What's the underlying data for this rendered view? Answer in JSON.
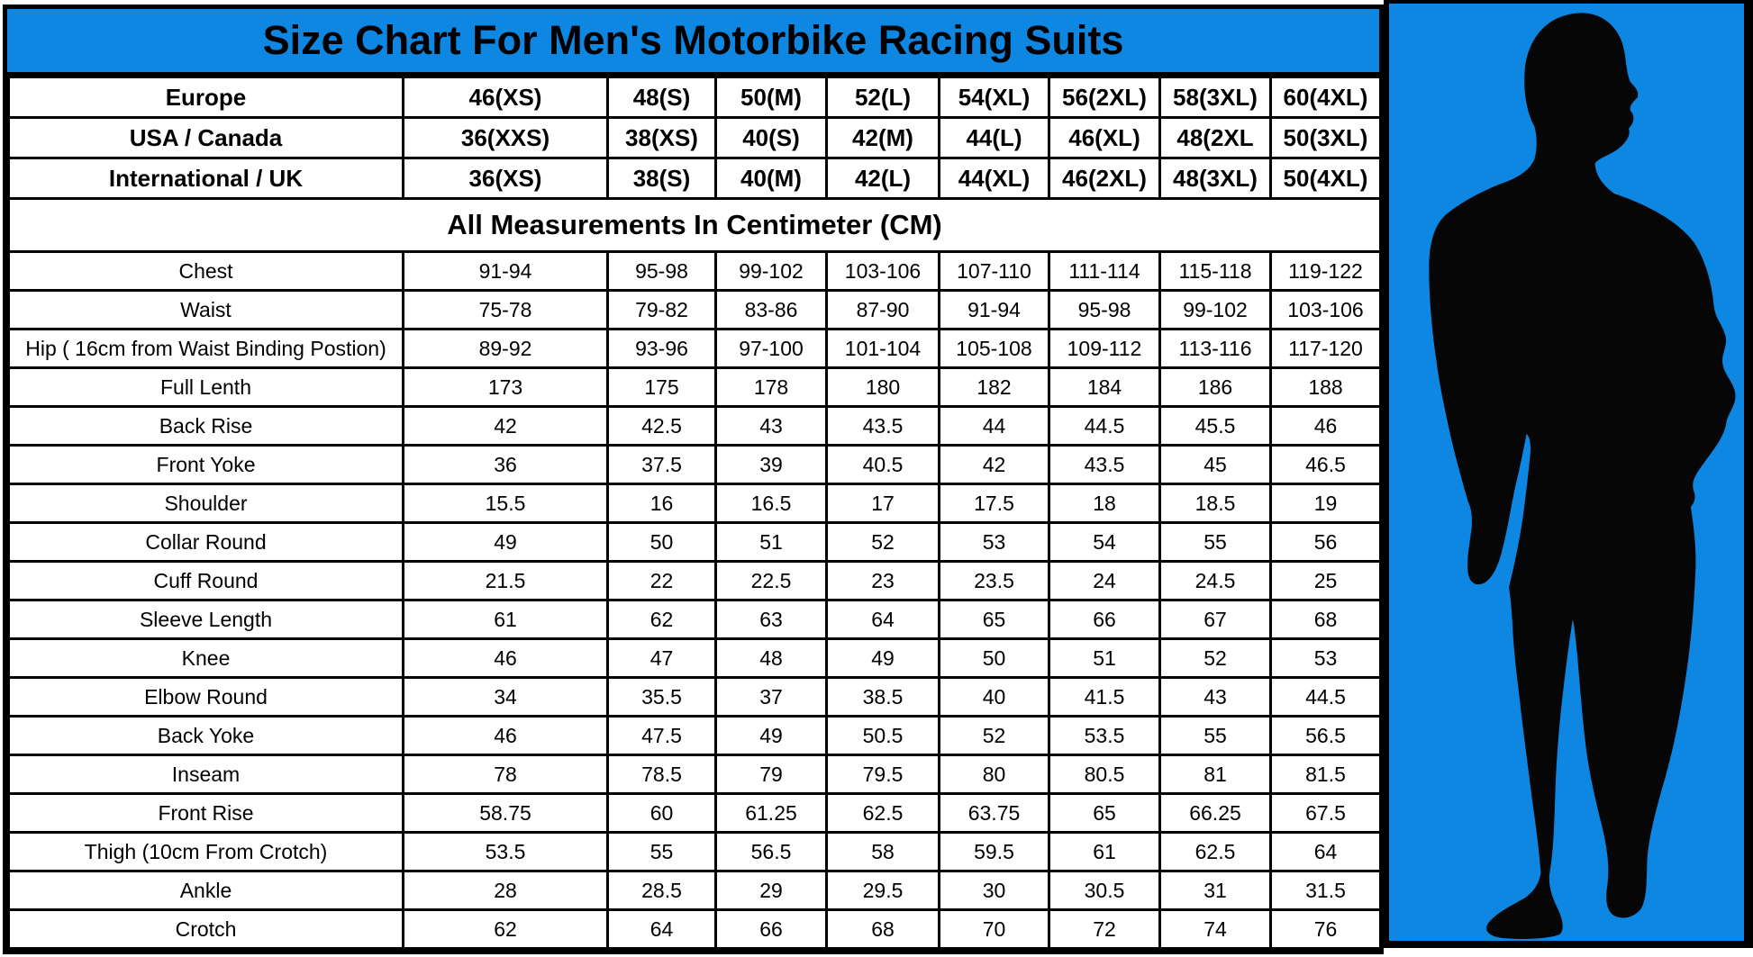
{
  "chart_data": {
    "type": "table",
    "title": "Size Chart For Men's Motorbike Racing Suits",
    "units_banner": "All Measurements In Centimeter (CM)",
    "size_system_rows": [
      {
        "label": "Europe",
        "values": [
          "46(XS)",
          "48(S)",
          "50(M)",
          "52(L)",
          "54(XL)",
          "56(2XL)",
          "58(3XL)",
          "60(4XL)"
        ]
      },
      {
        "label": "USA / Canada",
        "values": [
          "36(XXS)",
          "38(XS)",
          "40(S)",
          "42(M)",
          "44(L)",
          "46(XL)",
          "48(2XL",
          "50(3XL)"
        ]
      },
      {
        "label": "International / UK",
        "values": [
          "36(XS)",
          "38(S)",
          "40(M)",
          "42(L)",
          "44(XL)",
          "46(2XL)",
          "48(3XL)",
          "50(4XL)"
        ]
      }
    ],
    "measurement_rows": [
      {
        "label": "Chest",
        "values": [
          "91-94",
          "95-98",
          "99-102",
          "103-106",
          "107-110",
          "111-114",
          "115-118",
          "119-122"
        ]
      },
      {
        "label": "Waist",
        "values": [
          "75-78",
          "79-82",
          "83-86",
          "87-90",
          "91-94",
          "95-98",
          "99-102",
          "103-106"
        ]
      },
      {
        "label": "Hip ( 16cm from Waist Binding Postion)",
        "values": [
          "89-92",
          "93-96",
          "97-100",
          "101-104",
          "105-108",
          "109-112",
          "113-116",
          "117-120"
        ]
      },
      {
        "label": "Full Lenth",
        "values": [
          "173",
          "175",
          "178",
          "180",
          "182",
          "184",
          "186",
          "188"
        ]
      },
      {
        "label": "Back Rise",
        "values": [
          "42",
          "42.5",
          "43",
          "43.5",
          "44",
          "44.5",
          "45.5",
          "46"
        ]
      },
      {
        "label": "Front Yoke",
        "values": [
          "36",
          "37.5",
          "39",
          "40.5",
          "42",
          "43.5",
          "45",
          "46.5"
        ]
      },
      {
        "label": "Shoulder",
        "values": [
          "15.5",
          "16",
          "16.5",
          "17",
          "17.5",
          "18",
          "18.5",
          "19"
        ]
      },
      {
        "label": "Collar Round",
        "values": [
          "49",
          "50",
          "51",
          "52",
          "53",
          "54",
          "55",
          "56"
        ]
      },
      {
        "label": "Cuff Round",
        "values": [
          "21.5",
          "22",
          "22.5",
          "23",
          "23.5",
          "24",
          "24.5",
          "25"
        ]
      },
      {
        "label": "Sleeve Length",
        "values": [
          "61",
          "62",
          "63",
          "64",
          "65",
          "66",
          "67",
          "68"
        ]
      },
      {
        "label": "Knee",
        "values": [
          "46",
          "47",
          "48",
          "49",
          "50",
          "51",
          "52",
          "53"
        ]
      },
      {
        "label": "Elbow Round",
        "values": [
          "34",
          "35.5",
          "37",
          "38.5",
          "40",
          "41.5",
          "43",
          "44.5"
        ]
      },
      {
        "label": "Back Yoke",
        "values": [
          "46",
          "47.5",
          "49",
          "50.5",
          "52",
          "53.5",
          "55",
          "56.5"
        ]
      },
      {
        "label": "Inseam",
        "values": [
          "78",
          "78.5",
          "79",
          "79.5",
          "80",
          "80.5",
          "81",
          "81.5"
        ]
      },
      {
        "label": "Front Rise",
        "values": [
          "58.75",
          "60",
          "61.25",
          "62.5",
          "63.75",
          "65",
          "66.25",
          "67.5"
        ]
      },
      {
        "label": "Thigh (10cm From Crotch)",
        "values": [
          "53.5",
          "55",
          "56.5",
          "58",
          "59.5",
          "61",
          "62.5",
          "64"
        ]
      },
      {
        "label": "Ankle",
        "values": [
          "28",
          "28.5",
          "29",
          "29.5",
          "30",
          "30.5",
          "31",
          "31.5"
        ]
      },
      {
        "label": "Crotch",
        "values": [
          "62",
          "64",
          "66",
          "68",
          "70",
          "72",
          "74",
          "76"
        ]
      }
    ]
  },
  "figure_panel": {
    "icon": "man-in-suit-silhouette",
    "background_color": "#0d87e1",
    "silhouette_color": "#060606"
  },
  "colors": {
    "accent_blue": "#0d87e1",
    "grid_black": "#000000",
    "cell_white": "#ffffff",
    "text_black": "#000000"
  }
}
